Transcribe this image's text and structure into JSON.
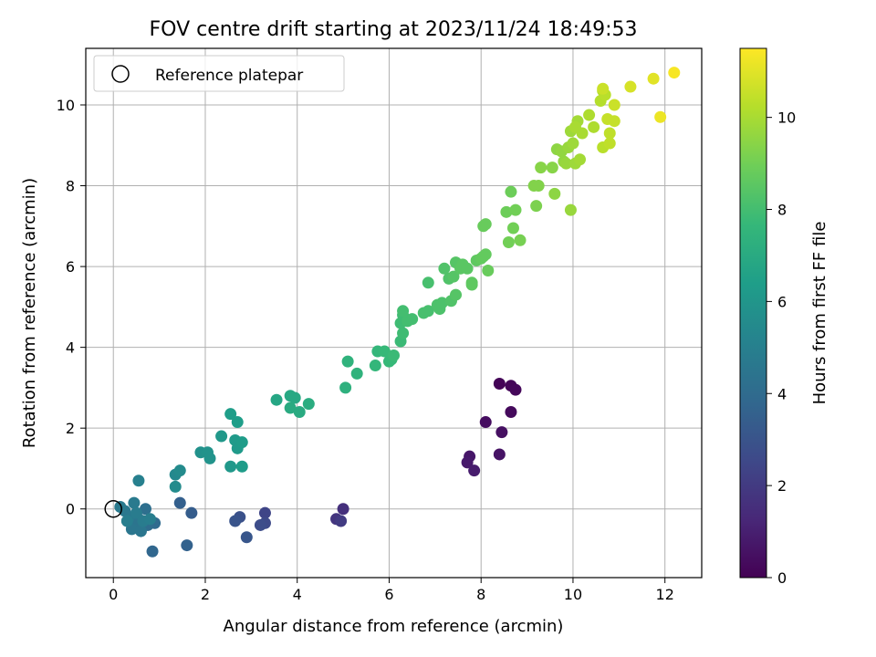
{
  "chart_data": {
    "type": "scatter",
    "title": "FOV centre drift starting at 2023/11/24 18:49:53",
    "xlabel": "Angular distance from reference (arcmin)",
    "ylabel": "Rotation from reference (arcmin)",
    "xlim": [
      -0.6,
      12.8
    ],
    "ylim": [
      -1.7,
      11.4
    ],
    "xticks": [
      "0",
      "2",
      "4",
      "6",
      "8",
      "10",
      "12"
    ],
    "xtick_values": [
      0,
      2,
      4,
      6,
      8,
      10,
      12
    ],
    "yticks": [
      "0",
      "2",
      "4",
      "6",
      "8",
      "10"
    ],
    "ytick_values": [
      0,
      2,
      4,
      6,
      8,
      10
    ],
    "grid": true,
    "legend": {
      "placement": "top-left",
      "entries": [
        "Reference platepar"
      ]
    },
    "reference_point": {
      "x": 0,
      "y": 0
    },
    "colorbar": {
      "label": "Hours from first FF file",
      "range": [
        0,
        11.5
      ],
      "ticks": [
        "0",
        "2",
        "4",
        "6",
        "8",
        "10"
      ],
      "tick_values": [
        0,
        2,
        4,
        6,
        8,
        10
      ],
      "colormap": "viridis",
      "colors": [
        "#440154",
        "#482878",
        "#3e4989",
        "#31688e",
        "#26828e",
        "#1f9e89",
        "#35b779",
        "#6ece58",
        "#b5de2b",
        "#fde725"
      ]
    },
    "points": [
      {
        "x": 8.4,
        "y": 3.1,
        "h": 0.1
      },
      {
        "x": 8.65,
        "y": 3.05,
        "h": 0.15
      },
      {
        "x": 8.75,
        "y": 2.95,
        "h": 0.2
      },
      {
        "x": 8.65,
        "y": 2.4,
        "h": 0.3
      },
      {
        "x": 8.1,
        "y": 2.15,
        "h": 0.4
      },
      {
        "x": 8.45,
        "y": 1.9,
        "h": 0.5
      },
      {
        "x": 8.4,
        "y": 1.35,
        "h": 0.6
      },
      {
        "x": 7.75,
        "y": 1.3,
        "h": 0.7
      },
      {
        "x": 7.7,
        "y": 1.15,
        "h": 0.8
      },
      {
        "x": 7.85,
        "y": 0.95,
        "h": 0.9
      },
      {
        "x": 5.0,
        "y": 0.0,
        "h": 1.6
      },
      {
        "x": 4.85,
        "y": -0.25,
        "h": 1.8
      },
      {
        "x": 4.95,
        "y": -0.3,
        "h": 2.0
      },
      {
        "x": 3.3,
        "y": -0.1,
        "h": 2.4
      },
      {
        "x": 3.3,
        "y": -0.35,
        "h": 2.6
      },
      {
        "x": 3.2,
        "y": -0.4,
        "h": 2.7
      },
      {
        "x": 2.75,
        "y": -0.2,
        "h": 2.9
      },
      {
        "x": 2.65,
        "y": -0.3,
        "h": 3.0
      },
      {
        "x": 2.9,
        "y": -0.7,
        "h": 3.1
      },
      {
        "x": 1.7,
        "y": -0.1,
        "h": 3.4
      },
      {
        "x": 1.45,
        "y": 0.15,
        "h": 3.5
      },
      {
        "x": 1.6,
        "y": -0.9,
        "h": 3.6
      },
      {
        "x": 0.85,
        "y": -1.05,
        "h": 3.8
      },
      {
        "x": 0.9,
        "y": -0.35,
        "h": 4.0
      },
      {
        "x": 0.75,
        "y": -0.4,
        "h": 4.1
      },
      {
        "x": 0.7,
        "y": 0.0,
        "h": 4.2
      },
      {
        "x": 0.55,
        "y": -0.25,
        "h": 4.3
      },
      {
        "x": 0.45,
        "y": -0.35,
        "h": 4.4
      },
      {
        "x": 0.4,
        "y": -0.5,
        "h": 4.5
      },
      {
        "x": 0.6,
        "y": -0.55,
        "h": 4.5
      },
      {
        "x": 0.35,
        "y": -0.2,
        "h": 4.6
      },
      {
        "x": 0.25,
        "y": -0.05,
        "h": 4.6
      },
      {
        "x": 0.15,
        "y": 0.05,
        "h": 4.7
      },
      {
        "x": 0.45,
        "y": 0.15,
        "h": 4.7
      },
      {
        "x": 0.5,
        "y": -0.1,
        "h": 4.8
      },
      {
        "x": 0.65,
        "y": -0.3,
        "h": 4.8
      },
      {
        "x": 0.8,
        "y": -0.25,
        "h": 4.9
      },
      {
        "x": 0.3,
        "y": -0.3,
        "h": 4.9
      },
      {
        "x": 0.55,
        "y": 0.7,
        "h": 5.0
      },
      {
        "x": 1.35,
        "y": 0.85,
        "h": 5.4
      },
      {
        "x": 1.45,
        "y": 0.95,
        "h": 5.5
      },
      {
        "x": 1.35,
        "y": 0.55,
        "h": 5.5
      },
      {
        "x": 1.9,
        "y": 1.4,
        "h": 5.8
      },
      {
        "x": 2.05,
        "y": 1.4,
        "h": 5.9
      },
      {
        "x": 2.1,
        "y": 1.25,
        "h": 5.9
      },
      {
        "x": 2.35,
        "y": 1.8,
        "h": 6.1
      },
      {
        "x": 2.55,
        "y": 1.05,
        "h": 6.1
      },
      {
        "x": 2.65,
        "y": 1.7,
        "h": 6.2
      },
      {
        "x": 2.7,
        "y": 1.5,
        "h": 6.2
      },
      {
        "x": 2.8,
        "y": 1.65,
        "h": 6.3
      },
      {
        "x": 2.8,
        "y": 1.05,
        "h": 6.3
      },
      {
        "x": 2.55,
        "y": 2.35,
        "h": 6.4
      },
      {
        "x": 2.7,
        "y": 2.15,
        "h": 6.4
      },
      {
        "x": 3.55,
        "y": 2.7,
        "h": 6.8
      },
      {
        "x": 3.85,
        "y": 2.8,
        "h": 6.9
      },
      {
        "x": 3.95,
        "y": 2.75,
        "h": 6.9
      },
      {
        "x": 3.85,
        "y": 2.5,
        "h": 7.0
      },
      {
        "x": 4.05,
        "y": 2.4,
        "h": 7.0
      },
      {
        "x": 4.25,
        "y": 2.6,
        "h": 7.1
      },
      {
        "x": 5.05,
        "y": 3.0,
        "h": 7.3
      },
      {
        "x": 5.1,
        "y": 3.65,
        "h": 7.4
      },
      {
        "x": 5.3,
        "y": 3.35,
        "h": 7.4
      },
      {
        "x": 5.7,
        "y": 3.55,
        "h": 7.6
      },
      {
        "x": 5.75,
        "y": 3.9,
        "h": 7.6
      },
      {
        "x": 5.9,
        "y": 3.9,
        "h": 7.7
      },
      {
        "x": 6.0,
        "y": 3.65,
        "h": 7.7
      },
      {
        "x": 6.05,
        "y": 3.7,
        "h": 7.7
      },
      {
        "x": 6.1,
        "y": 3.8,
        "h": 7.8
      },
      {
        "x": 6.25,
        "y": 4.15,
        "h": 7.8
      },
      {
        "x": 6.3,
        "y": 4.35,
        "h": 7.9
      },
      {
        "x": 6.25,
        "y": 4.6,
        "h": 7.9
      },
      {
        "x": 6.3,
        "y": 4.8,
        "h": 7.9
      },
      {
        "x": 6.3,
        "y": 4.9,
        "h": 8.0
      },
      {
        "x": 6.4,
        "y": 4.65,
        "h": 8.0
      },
      {
        "x": 6.5,
        "y": 4.7,
        "h": 8.0
      },
      {
        "x": 6.75,
        "y": 4.85,
        "h": 8.1
      },
      {
        "x": 6.85,
        "y": 4.9,
        "h": 8.1
      },
      {
        "x": 6.85,
        "y": 5.6,
        "h": 8.1
      },
      {
        "x": 7.05,
        "y": 5.05,
        "h": 8.2
      },
      {
        "x": 7.1,
        "y": 4.95,
        "h": 8.2
      },
      {
        "x": 7.15,
        "y": 5.1,
        "h": 8.2
      },
      {
        "x": 7.2,
        "y": 5.95,
        "h": 8.3
      },
      {
        "x": 7.3,
        "y": 5.7,
        "h": 8.3
      },
      {
        "x": 7.35,
        "y": 5.15,
        "h": 8.3
      },
      {
        "x": 7.45,
        "y": 5.3,
        "h": 8.4
      },
      {
        "x": 7.4,
        "y": 5.75,
        "h": 8.4
      },
      {
        "x": 7.45,
        "y": 6.1,
        "h": 8.4
      },
      {
        "x": 7.55,
        "y": 5.95,
        "h": 8.5
      },
      {
        "x": 7.6,
        "y": 6.05,
        "h": 8.5
      },
      {
        "x": 7.7,
        "y": 5.95,
        "h": 8.5
      },
      {
        "x": 7.8,
        "y": 5.6,
        "h": 8.6
      },
      {
        "x": 7.8,
        "y": 5.55,
        "h": 8.6
      },
      {
        "x": 7.9,
        "y": 6.15,
        "h": 8.6
      },
      {
        "x": 8.0,
        "y": 6.2,
        "h": 8.7
      },
      {
        "x": 8.05,
        "y": 6.25,
        "h": 8.7
      },
      {
        "x": 8.1,
        "y": 6.3,
        "h": 8.7
      },
      {
        "x": 8.15,
        "y": 5.9,
        "h": 8.8
      },
      {
        "x": 8.05,
        "y": 7.0,
        "h": 8.8
      },
      {
        "x": 8.1,
        "y": 7.05,
        "h": 8.8
      },
      {
        "x": 8.55,
        "y": 7.35,
        "h": 8.9
      },
      {
        "x": 8.65,
        "y": 7.85,
        "h": 8.9
      },
      {
        "x": 8.6,
        "y": 6.6,
        "h": 9.0
      },
      {
        "x": 8.7,
        "y": 6.95,
        "h": 9.0
      },
      {
        "x": 8.75,
        "y": 7.4,
        "h": 9.0
      },
      {
        "x": 8.85,
        "y": 6.65,
        "h": 9.1
      },
      {
        "x": 9.2,
        "y": 7.5,
        "h": 9.2
      },
      {
        "x": 9.15,
        "y": 8.0,
        "h": 9.3
      },
      {
        "x": 9.25,
        "y": 8.0,
        "h": 9.3
      },
      {
        "x": 9.3,
        "y": 8.45,
        "h": 9.4
      },
      {
        "x": 9.55,
        "y": 8.45,
        "h": 9.4
      },
      {
        "x": 9.6,
        "y": 7.8,
        "h": 9.5
      },
      {
        "x": 9.65,
        "y": 8.9,
        "h": 9.5
      },
      {
        "x": 9.75,
        "y": 8.85,
        "h": 9.6
      },
      {
        "x": 9.8,
        "y": 8.6,
        "h": 9.6
      },
      {
        "x": 9.85,
        "y": 8.55,
        "h": 9.7
      },
      {
        "x": 9.9,
        "y": 8.95,
        "h": 9.7
      },
      {
        "x": 9.95,
        "y": 7.4,
        "h": 9.7
      },
      {
        "x": 10.0,
        "y": 9.05,
        "h": 9.8
      },
      {
        "x": 10.05,
        "y": 8.55,
        "h": 9.8
      },
      {
        "x": 9.95,
        "y": 9.35,
        "h": 9.8
      },
      {
        "x": 10.1,
        "y": 9.6,
        "h": 9.9
      },
      {
        "x": 10.15,
        "y": 8.65,
        "h": 9.9
      },
      {
        "x": 10.2,
        "y": 9.3,
        "h": 10.0
      },
      {
        "x": 10.05,
        "y": 9.45,
        "h": 10.0
      },
      {
        "x": 10.35,
        "y": 9.75,
        "h": 10.1
      },
      {
        "x": 10.45,
        "y": 9.45,
        "h": 10.1
      },
      {
        "x": 10.6,
        "y": 10.1,
        "h": 10.2
      },
      {
        "x": 10.65,
        "y": 10.35,
        "h": 10.2
      },
      {
        "x": 10.7,
        "y": 10.25,
        "h": 10.3
      },
      {
        "x": 10.65,
        "y": 8.95,
        "h": 10.3
      },
      {
        "x": 10.8,
        "y": 9.05,
        "h": 10.4
      },
      {
        "x": 10.8,
        "y": 9.3,
        "h": 10.4
      },
      {
        "x": 10.75,
        "y": 9.65,
        "h": 10.5
      },
      {
        "x": 10.9,
        "y": 9.6,
        "h": 10.5
      },
      {
        "x": 10.9,
        "y": 10.0,
        "h": 10.6
      },
      {
        "x": 10.65,
        "y": 10.4,
        "h": 10.6
      },
      {
        "x": 11.25,
        "y": 10.45,
        "h": 10.8
      },
      {
        "x": 11.75,
        "y": 10.65,
        "h": 11.0
      },
      {
        "x": 11.9,
        "y": 9.7,
        "h": 11.2
      },
      {
        "x": 12.2,
        "y": 10.8,
        "h": 11.4
      }
    ]
  }
}
